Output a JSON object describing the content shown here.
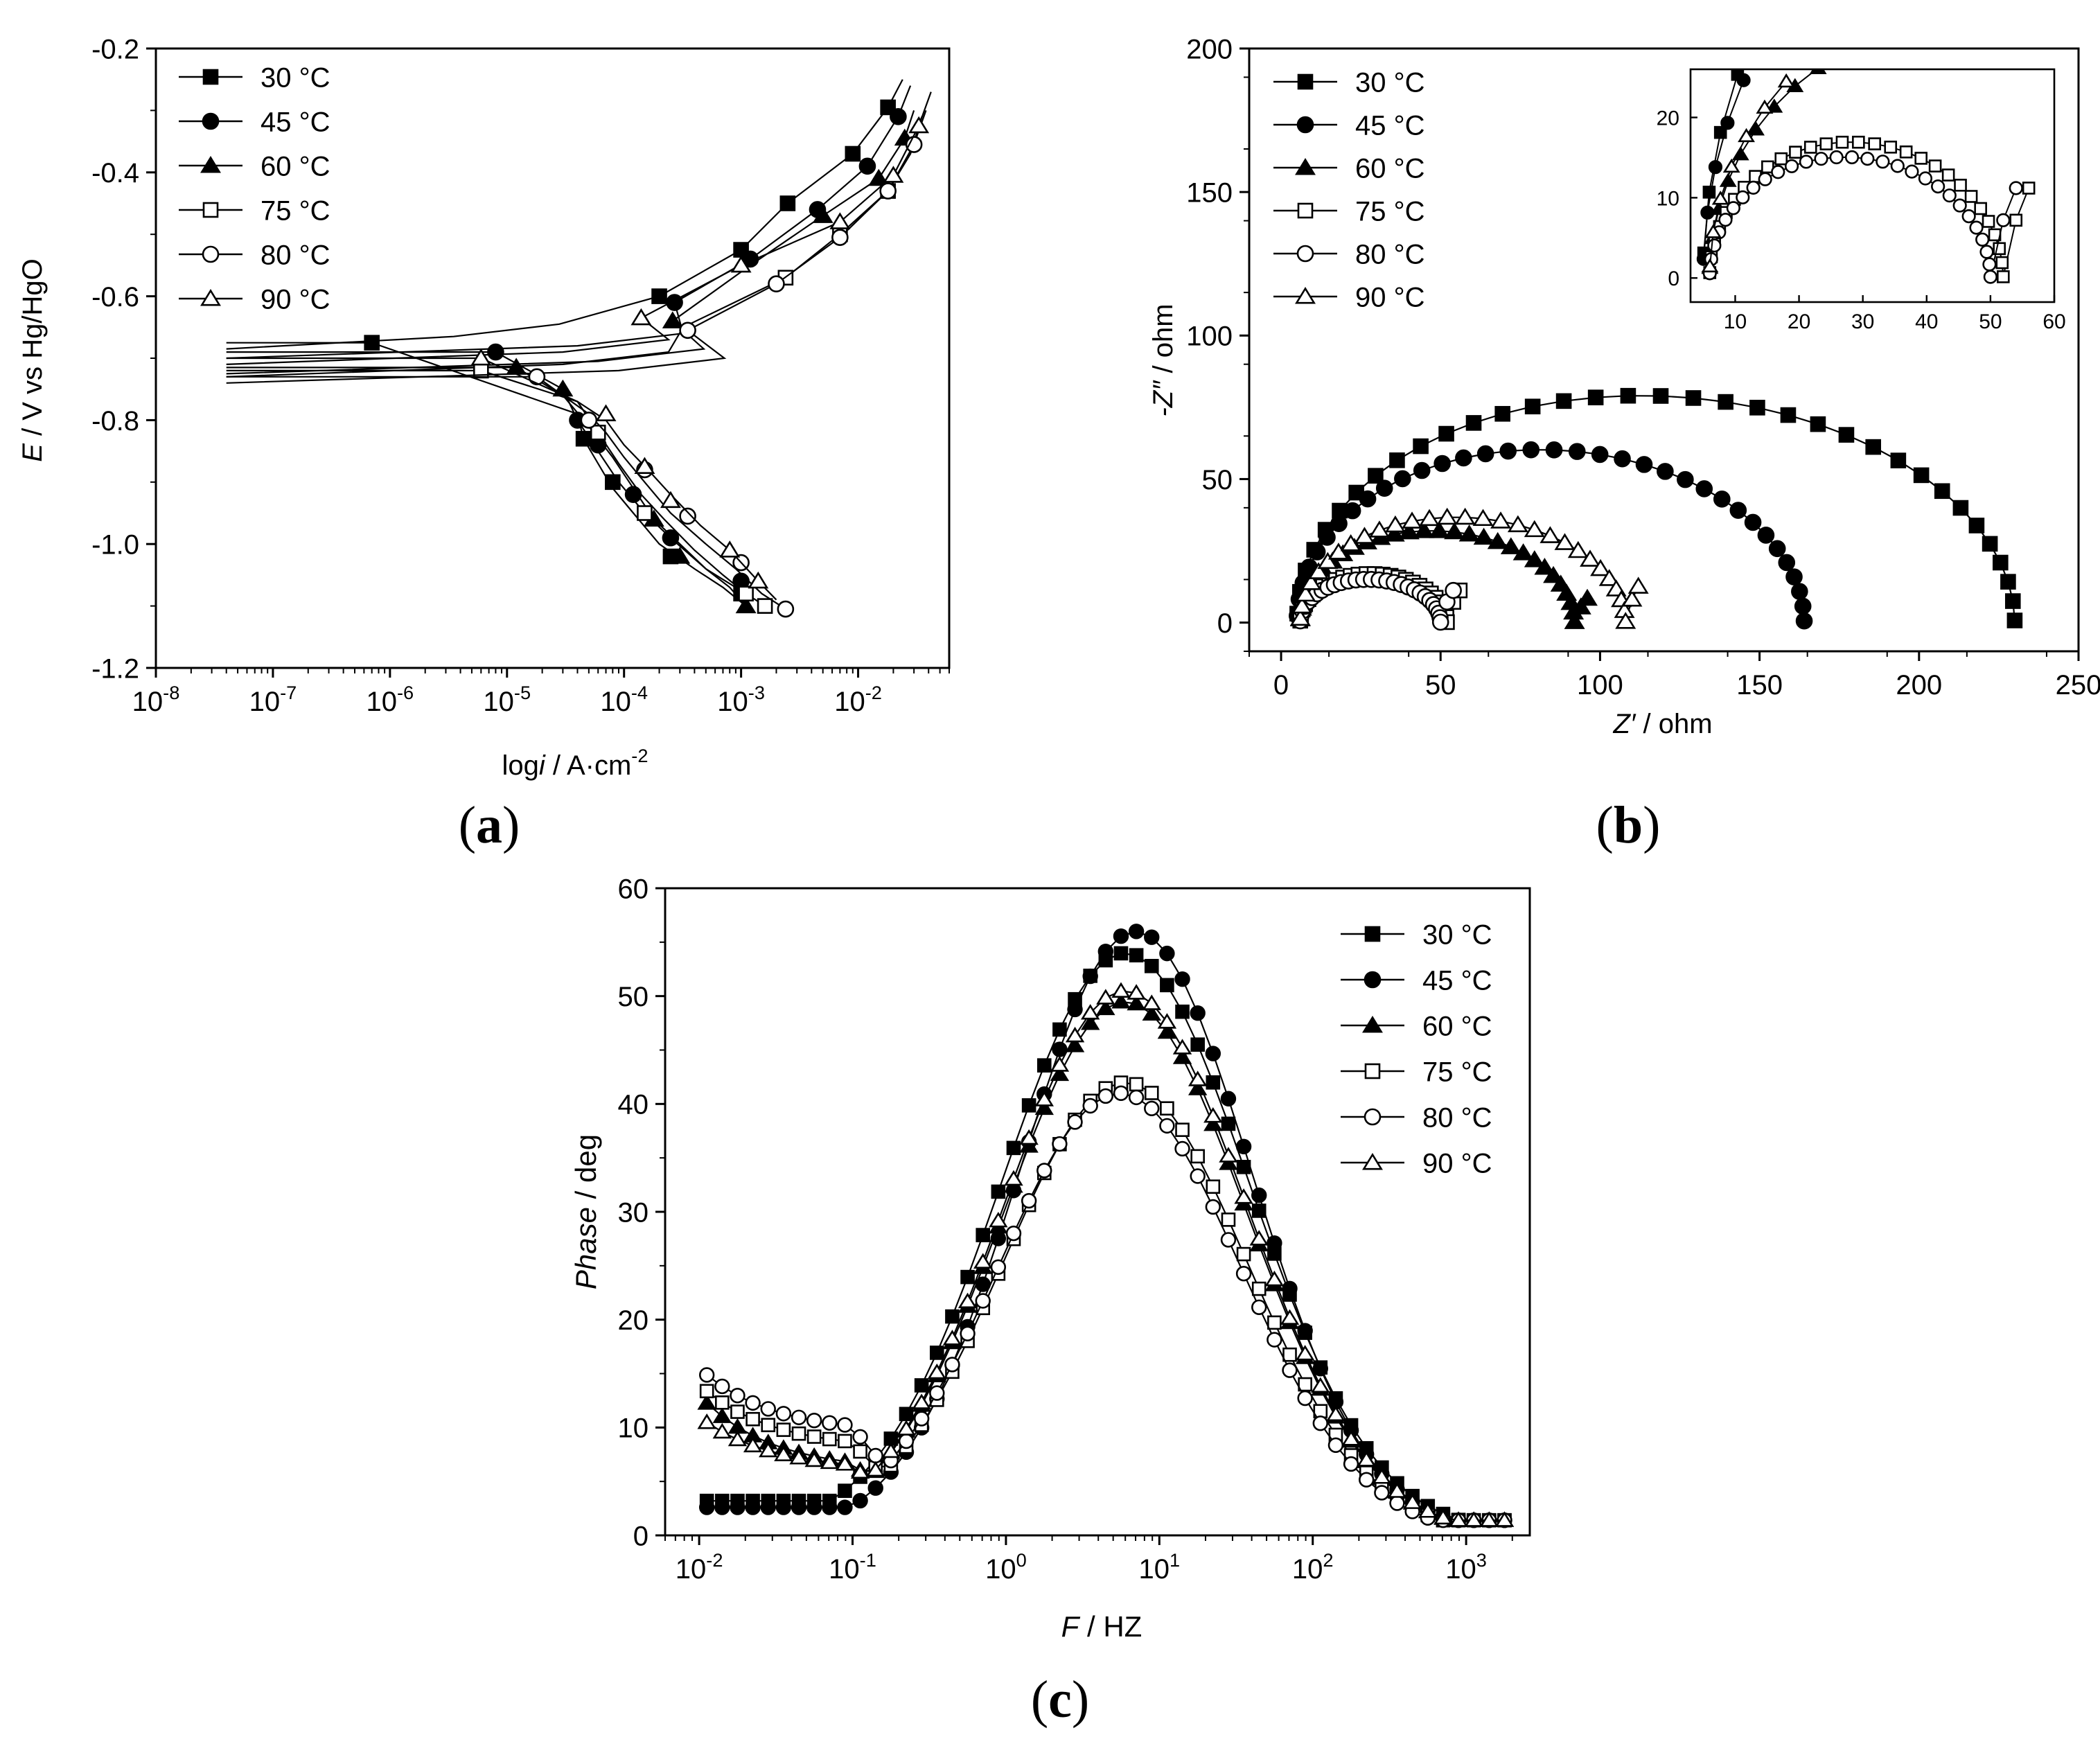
{
  "figure": {
    "panels": [
      {
        "id": "a",
        "label_open": "(",
        "label_letter": "a",
        "label_close": ")"
      },
      {
        "id": "b",
        "label_open": "(",
        "label_letter": "b",
        "label_close": ")"
      },
      {
        "id": "c",
        "label_open": "(",
        "label_letter": "c",
        "label_close": ")"
      }
    ]
  },
  "chart_data": [
    {
      "id": "a",
      "type": "line",
      "title": "",
      "xlabel": "log i / A·cm-2",
      "xlabel_parts": [
        "log",
        "i",
        " / A·cm",
        "-2"
      ],
      "ylabel": "E / V vs Hg/HgO",
      "ylabel_parts": [
        "E",
        " / V vs Hg/HgO"
      ],
      "xscale": "log",
      "xlim": [
        1e-08,
        0.06
      ],
      "ylim": [
        -1.2,
        -0.2
      ],
      "x_ticks": [
        1e-08,
        1e-07,
        1e-06,
        1e-05,
        0.0001,
        0.001,
        0.01
      ],
      "x_tick_labels": [
        [
          "10",
          "-8"
        ],
        [
          "10",
          "-7"
        ],
        [
          "10",
          "-6"
        ],
        [
          "10",
          "-5"
        ],
        [
          "10",
          "-4"
        ],
        [
          "10",
          "-3"
        ],
        [
          "10",
          "-2"
        ]
      ],
      "y_ticks": [
        -1.2,
        -1.0,
        -0.8,
        -0.6,
        -0.4,
        -0.2
      ],
      "y_tick_labels": [
        "-1.2",
        "-1.0",
        "-0.8",
        "-0.6",
        "-0.4",
        "-0.2"
      ],
      "legend_position": "top-left",
      "series": [
        {
          "name": "30 °C",
          "marker": "filled-square",
          "ecorr": -0.675,
          "icorr": 7e-07,
          "cathodic": [
            [
              4e-05,
              -0.79
            ],
            [
              4.5e-05,
              -0.83
            ],
            [
              6e-05,
              -0.87
            ],
            [
              8e-05,
              -0.91
            ],
            [
              0.00012,
              -0.95
            ],
            [
              0.0002,
              -1.0
            ],
            [
              0.0004,
              -1.04
            ],
            [
              0.0007,
              -1.07
            ],
            [
              0.0011,
              -1.1
            ]
          ],
          "anodic": [
            [
              0.0002,
              -0.6
            ],
            [
              0.001,
              -0.525
            ],
            [
              0.0025,
              -0.45
            ],
            [
              0.009,
              -0.37
            ],
            [
              0.018,
              -0.295
            ],
            [
              0.024,
              -0.25
            ]
          ],
          "markers": [
            [
              7e-07,
              -0.675
            ],
            [
              4.5e-05,
              -0.83
            ],
            [
              8e-05,
              -0.9
            ],
            [
              0.00025,
              -1.02
            ],
            [
              0.001,
              -1.08
            ],
            [
              0.0002,
              -0.6
            ],
            [
              0.001,
              -0.525
            ],
            [
              0.0025,
              -0.45
            ],
            [
              0.009,
              -0.37
            ],
            [
              0.018,
              -0.295
            ]
          ]
        },
        {
          "name": "45 °C",
          "marker": "filled-circle",
          "ecorr": -0.69,
          "icorr": 8e-06,
          "cathodic": [
            [
              3e-05,
              -0.75
            ],
            [
              4e-05,
              -0.8
            ],
            [
              6e-05,
              -0.85
            ],
            [
              9e-05,
              -0.9
            ],
            [
              0.00015,
              -0.95
            ],
            [
              0.00025,
              -0.99
            ],
            [
              0.0005,
              -1.04
            ],
            [
              0.0009,
              -1.07
            ],
            [
              0.0012,
              -1.09
            ]
          ],
          "anodic": [
            [
              0.00027,
              -0.61
            ],
            [
              0.0012,
              -0.54
            ],
            [
              0.0045,
              -0.46
            ],
            [
              0.012,
              -0.39
            ],
            [
              0.022,
              -0.31
            ],
            [
              0.028,
              -0.26
            ]
          ],
          "markers": [
            [
              8e-06,
              -0.69
            ],
            [
              4e-05,
              -0.8
            ],
            [
              6e-05,
              -0.84
            ],
            [
              0.00012,
              -0.92
            ],
            [
              0.00025,
              -0.99
            ],
            [
              0.001,
              -1.06
            ],
            [
              0.00027,
              -0.61
            ],
            [
              0.0012,
              -0.54
            ],
            [
              0.0045,
              -0.46
            ],
            [
              0.012,
              -0.39
            ],
            [
              0.022,
              -0.31
            ]
          ]
        },
        {
          "name": "60 °C",
          "marker": "filled-triangle",
          "ecorr": -0.715,
          "icorr": 1.2e-05,
          "cathodic": [
            [
              3e-05,
              -0.76
            ],
            [
              5e-05,
              -0.81
            ],
            [
              8e-05,
              -0.86
            ],
            [
              0.00012,
              -0.91
            ],
            [
              0.00018,
              -0.96
            ],
            [
              0.0003,
              -1.0
            ],
            [
              0.0005,
              -1.04
            ],
            [
              0.0008,
              -1.07
            ],
            [
              0.0011,
              -1.1
            ]
          ],
          "anodic": [
            [
              0.00026,
              -0.64
            ],
            [
              0.0012,
              -0.55
            ],
            [
              0.005,
              -0.47
            ],
            [
              0.015,
              -0.41
            ],
            [
              0.025,
              -0.345
            ],
            [
              0.03,
              -0.3
            ]
          ],
          "markers": [
            [
              1.2e-05,
              -0.715
            ],
            [
              3e-05,
              -0.75
            ],
            [
              0.00018,
              -0.96
            ],
            [
              0.0003,
              -1.02
            ],
            [
              0.0011,
              -1.1
            ],
            [
              0.00026,
              -0.64
            ],
            [
              0.005,
              -0.47
            ],
            [
              0.015,
              -0.41
            ],
            [
              0.025,
              -0.345
            ]
          ]
        },
        {
          "name": "75 °C",
          "marker": "open-square",
          "ecorr": -0.72,
          "icorr": 6e-06,
          "cathodic": [
            [
              4e-05,
              -0.77
            ],
            [
              6e-05,
              -0.82
            ],
            [
              9e-05,
              -0.87
            ],
            [
              0.00014,
              -0.92
            ],
            [
              0.00022,
              -0.96
            ],
            [
              0.0004,
              -1.01
            ],
            [
              0.0007,
              -1.05
            ],
            [
              0.0011,
              -1.08
            ],
            [
              0.0016,
              -1.1
            ]
          ],
          "anodic": [
            [
              0.00032,
              -0.65
            ],
            [
              0.0024,
              -0.57
            ],
            [
              0.007,
              -0.5
            ],
            [
              0.018,
              -0.43
            ],
            [
              0.028,
              -0.37
            ],
            [
              0.035,
              -0.31
            ]
          ],
          "markers": [
            [
              6e-06,
              -0.72
            ],
            [
              6e-05,
              -0.82
            ],
            [
              0.00015,
              -0.95
            ],
            [
              0.0011,
              -1.08
            ],
            [
              0.0016,
              -1.1
            ],
            [
              0.0024,
              -0.57
            ],
            [
              0.007,
              -0.5
            ],
            [
              0.018,
              -0.43
            ]
          ]
        },
        {
          "name": "80 °C",
          "marker": "open-circle",
          "ecorr": -0.73,
          "icorr": 1.8e-05,
          "cathodic": [
            [
              5e-05,
              -0.79
            ],
            [
              7e-05,
              -0.82
            ],
            [
              0.0001,
              -0.86
            ],
            [
              0.00015,
              -0.9
            ],
            [
              0.00025,
              -0.95
            ],
            [
              0.0005,
              -1.0
            ],
            [
              0.0009,
              -1.04
            ],
            [
              0.0015,
              -1.08
            ],
            [
              0.0024,
              -1.105
            ]
          ],
          "anodic": [
            [
              0.00035,
              -0.655
            ],
            [
              0.002,
              -0.58
            ],
            [
              0.007,
              -0.505
            ],
            [
              0.018,
              -0.43
            ],
            [
              0.03,
              -0.355
            ],
            [
              0.038,
              -0.3
            ]
          ],
          "markers": [
            [
              1.8e-05,
              -0.73
            ],
            [
              5e-05,
              -0.8
            ],
            [
              0.00015,
              -0.88
            ],
            [
              0.00035,
              -0.955
            ],
            [
              0.001,
              -1.03
            ],
            [
              0.0024,
              -1.105
            ],
            [
              0.00035,
              -0.655
            ],
            [
              0.002,
              -0.58
            ],
            [
              0.007,
              -0.505
            ],
            [
              0.018,
              -0.43
            ],
            [
              0.03,
              -0.355
            ]
          ]
        },
        {
          "name": "90 °C",
          "marker": "open-triangle",
          "ecorr": -0.7,
          "icorr": 6e-06,
          "cathodic": [
            [
              4e-05,
              -0.77
            ],
            [
              7e-05,
              -0.8
            ],
            [
              0.0001,
              -0.84
            ],
            [
              0.00016,
              -0.88
            ],
            [
              0.00025,
              -0.92
            ],
            [
              0.00045,
              -0.97
            ],
            [
              0.0008,
              -1.01
            ],
            [
              0.0014,
              -1.06
            ],
            [
              0.002,
              -1.09
            ]
          ],
          "anodic": [
            [
              0.00014,
              -0.635
            ],
            [
              0.001,
              -0.55
            ],
            [
              0.007,
              -0.48
            ],
            [
              0.02,
              -0.405
            ],
            [
              0.033,
              -0.325
            ],
            [
              0.042,
              -0.27
            ]
          ],
          "markers": [
            [
              6e-06,
              -0.7
            ],
            [
              7e-05,
              -0.79
            ],
            [
              0.00015,
              -0.875
            ],
            [
              0.00025,
              -0.93
            ],
            [
              0.0008,
              -1.01
            ],
            [
              0.0014,
              -1.06
            ],
            [
              0.00014,
              -0.635
            ],
            [
              0.001,
              -0.55
            ],
            [
              0.007,
              -0.48
            ],
            [
              0.02,
              -0.405
            ],
            [
              0.033,
              -0.325
            ]
          ]
        }
      ]
    },
    {
      "id": "b",
      "type": "scatter",
      "title": "",
      "xlabel": "Z′ / ohm",
      "xlabel_parts": [
        "Z′",
        " / ohm"
      ],
      "ylabel": "-Z″ / ohm",
      "ylabel_parts": [
        "-Z″",
        " / ohm"
      ],
      "xlim": [
        -10,
        250
      ],
      "ylim": [
        -10,
        200
      ],
      "x_ticks": [
        0,
        50,
        100,
        150,
        200,
        250
      ],
      "x_tick_labels": [
        "0",
        "50",
        "100",
        "150",
        "200",
        "250"
      ],
      "y_ticks": [
        0,
        50,
        100,
        150,
        200
      ],
      "y_tick_labels": [
        "0",
        "50",
        "100",
        "150",
        "200"
      ],
      "legend_position": "top-left",
      "series": [
        {
          "name": "30 °C",
          "marker": "filled-square",
          "r0": 5,
          "r1": 230,
          "peak": 84,
          "tail_rise": 0
        },
        {
          "name": "45 °C",
          "marker": "filled-circle",
          "r0": 5,
          "r1": 164,
          "peak": 64,
          "tail_rise": 0
        },
        {
          "name": "60 °C",
          "marker": "filled-triangle",
          "r0": 6,
          "r1": 92,
          "peak": 34,
          "tail_rise": 6
        },
        {
          "name": "75 °C",
          "marker": "open-square",
          "r0": 6,
          "r1": 52,
          "peak": 18,
          "tail_rise": 8
        },
        {
          "name": "80 °C",
          "marker": "open-circle",
          "r0": 6,
          "r1": 50,
          "peak": 16,
          "tail_rise": 8
        },
        {
          "name": "90 °C",
          "marker": "open-triangle",
          "r0": 6,
          "r1": 108,
          "peak": 39,
          "tail_rise": 9
        }
      ],
      "inset": {
        "xlim": [
          3,
          60
        ],
        "ylim": [
          -3,
          26
        ],
        "x_ticks": [
          10,
          20,
          30,
          40,
          50,
          60
        ],
        "x_tick_labels": [
          "10",
          "20",
          "30",
          "40",
          "50",
          "60"
        ],
        "y_ticks": [
          0,
          10,
          20
        ],
        "y_tick_labels": [
          "0",
          "10",
          "20"
        ]
      }
    },
    {
      "id": "c",
      "type": "scatter",
      "title": "",
      "xlabel": "F / HZ",
      "xlabel_parts": [
        "F",
        " / HZ"
      ],
      "ylabel": "Phase / deg",
      "ylabel_parts": [
        "Phase",
        " / deg"
      ],
      "xscale": "log",
      "xlim": [
        0.006,
        2600
      ],
      "ylim": [
        0,
        60
      ],
      "x_ticks": [
        0.01,
        0.1,
        1,
        10,
        100,
        1000
      ],
      "x_tick_labels": [
        [
          "10",
          "-2"
        ],
        [
          "10",
          "-1"
        ],
        [
          "10",
          "0"
        ],
        [
          "10",
          "1"
        ],
        [
          "10",
          "2"
        ],
        [
          "10",
          "3"
        ]
      ],
      "y_ticks": [
        0,
        10,
        20,
        30,
        40,
        50,
        60
      ],
      "y_tick_labels": [
        "0",
        "10",
        "20",
        "30",
        "40",
        "50",
        "60"
      ],
      "legend_position": "top-right",
      "series": [
        {
          "name": "30 °C",
          "marker": "filled-square",
          "peak": 54,
          "peak_f": 6,
          "width": 1.02,
          "low_f_value": 3.2,
          "low_f_bump": 0
        },
        {
          "name": "45 °C",
          "marker": "filled-circle",
          "peak": 56,
          "peak_f": 7,
          "width": 0.95,
          "low_f_value": 2.6,
          "low_f_bump": 0
        },
        {
          "name": "60 °C",
          "marker": "filled-triangle",
          "peak": 49.5,
          "peak_f": 6,
          "width": 1.0,
          "low_f_value": 6,
          "low_f_bump": 7
        },
        {
          "name": "75 °C",
          "marker": "open-square",
          "peak": 42,
          "peak_f": 6,
          "width": 1.0,
          "low_f_value": 8,
          "low_f_bump": 6
        },
        {
          "name": "80 °C",
          "marker": "open-circle",
          "peak": 41,
          "peak_f": 5.5,
          "width": 1.0,
          "low_f_value": 9.5,
          "low_f_bump": 6
        },
        {
          "name": "90 °C",
          "marker": "open-triangle",
          "peak": 50.5,
          "peak_f": 6,
          "width": 1.0,
          "low_f_value": 6,
          "low_f_bump": 5
        }
      ]
    }
  ]
}
